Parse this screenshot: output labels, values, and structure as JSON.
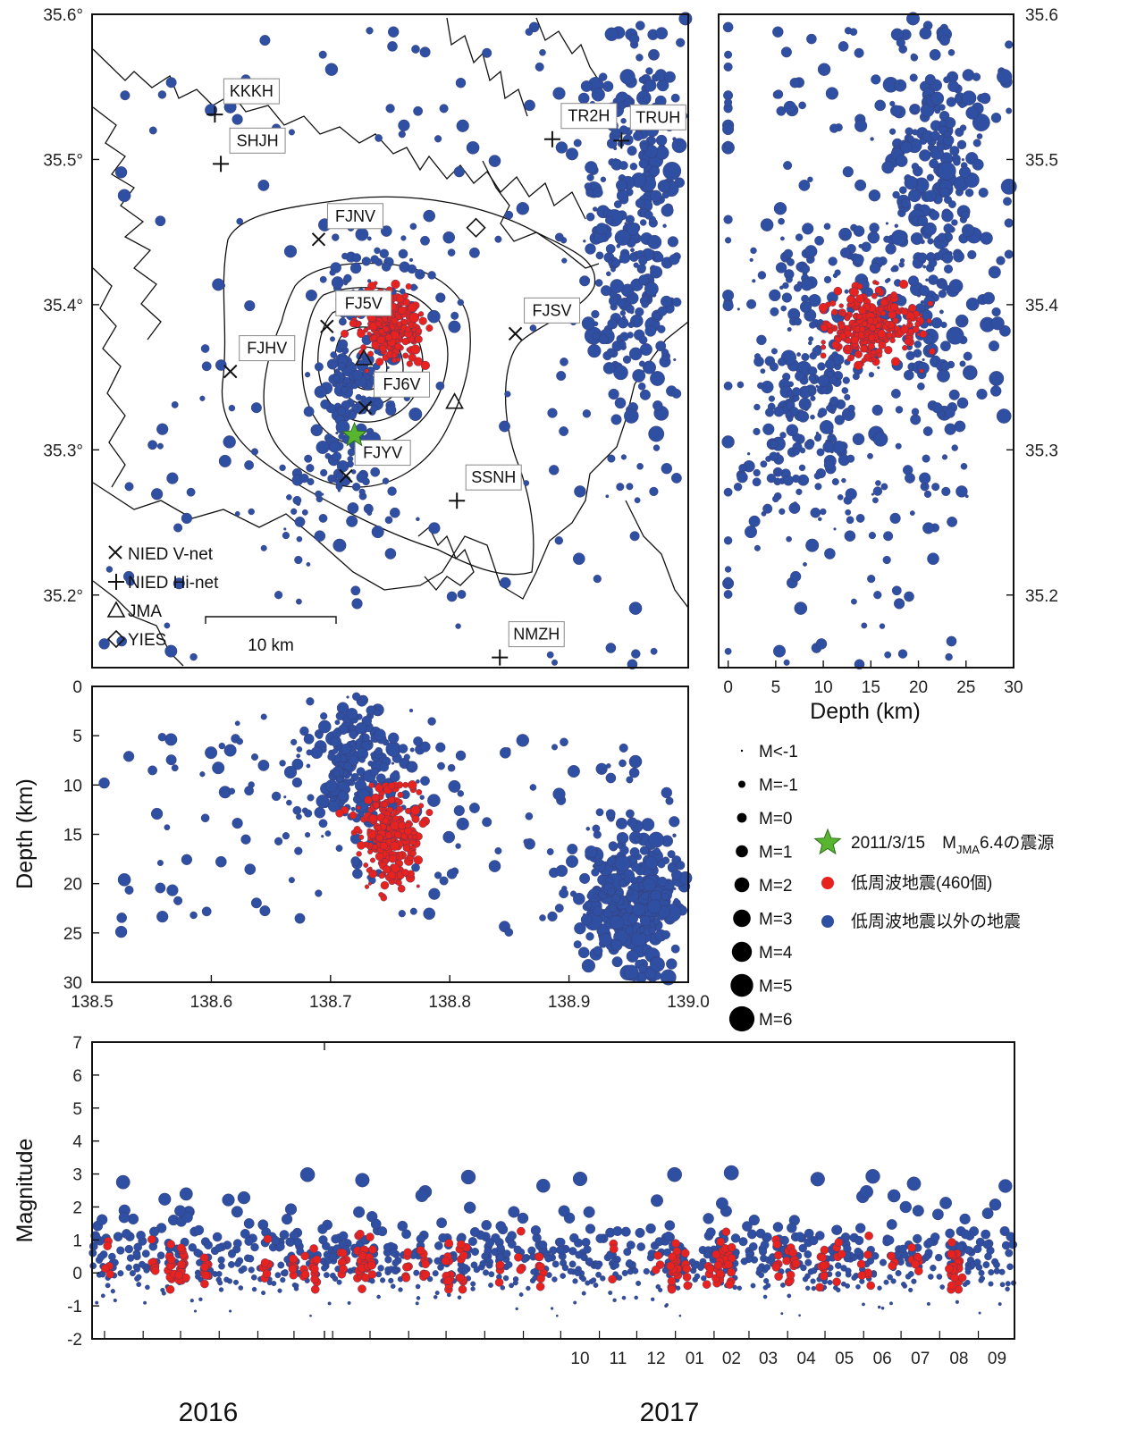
{
  "chart_data": [
    {
      "type": "scatter",
      "panel": "map",
      "xlim": [
        138.5,
        139.0
      ],
      "ylim": [
        35.15,
        35.6
      ],
      "y_ticks": [
        "35.2°",
        "35.3°",
        "35.4°",
        "35.5°",
        "35.6°"
      ],
      "scale_bar": "10 km",
      "stations": [
        {
          "name": "KKKH",
          "type": "Hi-net",
          "lon": 138.603,
          "lat": 35.531
        },
        {
          "name": "SHJH",
          "type": "Hi-net",
          "lon": 138.608,
          "lat": 35.497
        },
        {
          "name": "TR2H",
          "type": "Hi-net",
          "lon": 138.886,
          "lat": 35.514
        },
        {
          "name": "TRUH",
          "type": "Hi-net",
          "lon": 138.944,
          "lat": 35.513
        },
        {
          "name": "FJNV",
          "type": "V-net",
          "lon": 138.69,
          "lat": 35.445
        },
        {
          "name": "FJ5V",
          "type": "V-net",
          "lon": 138.697,
          "lat": 35.385
        },
        {
          "name": "FJSV",
          "type": "V-net",
          "lon": 138.855,
          "lat": 35.38
        },
        {
          "name": "FJHV",
          "type": "V-net",
          "lon": 138.616,
          "lat": 35.354
        },
        {
          "name": "FJ6V",
          "type": "V-net",
          "lon": 138.729,
          "lat": 35.329
        },
        {
          "name": "FJYV",
          "type": "V-net",
          "lon": 138.713,
          "lat": 35.282
        },
        {
          "name": "SSNH",
          "type": "Hi-net",
          "lon": 138.806,
          "lat": 35.265
        },
        {
          "name": "NMZH",
          "type": "Hi-net",
          "lon": 138.842,
          "lat": 35.157
        },
        {
          "name": "",
          "type": "JMA",
          "lon": 138.728,
          "lat": 35.363
        },
        {
          "name": "",
          "type": "JMA",
          "lon": 138.804,
          "lat": 35.333
        },
        {
          "name": "",
          "type": "YIES",
          "lon": 138.822,
          "lat": 35.453
        }
      ],
      "mainshock": {
        "lon": 138.72,
        "lat": 35.31
      },
      "legend": [
        "NIED V-net",
        "NIED Hi-net",
        "JMA",
        "YIES"
      ]
    },
    {
      "type": "scatter",
      "panel": "depth-latitude section",
      "xlabel": "Depth (km)",
      "xlim": [
        -1,
        30
      ],
      "x_ticks": [
        "0",
        "5",
        "10",
        "15",
        "20",
        "25",
        "30"
      ],
      "ylim": [
        35.15,
        35.6
      ],
      "y_ticks": [
        "35.2",
        "35.3",
        "35.4",
        "35.5",
        "35.6"
      ]
    },
    {
      "type": "scatter",
      "panel": "longitude-depth section",
      "ylabel": "Depth (km)",
      "xlim": [
        138.5,
        139.0
      ],
      "x_ticks": [
        "138.5",
        "138.6",
        "138.7",
        "138.8",
        "138.9",
        "139.0"
      ],
      "ylim": [
        30,
        0
      ],
      "y_ticks": [
        "0",
        "5",
        "10",
        "15",
        "20",
        "25",
        "30"
      ]
    },
    {
      "type": "scatter",
      "panel": "magnitude-time",
      "ylabel": "Magnitude",
      "ylim": [
        -2,
        7
      ],
      "y_ticks": [
        "-2",
        "-1",
        "0",
        "1",
        "2",
        "3",
        "4",
        "5",
        "6",
        "7"
      ],
      "months": [
        "10",
        "11",
        "12",
        "01",
        "02",
        "03",
        "04",
        "05",
        "06",
        "07",
        "08",
        "09"
      ],
      "years": [
        "2016",
        "2017"
      ],
      "xlim": [
        "2015-09-21",
        "2017-09-30"
      ]
    }
  ],
  "legend": {
    "magnitude_scale": [
      "M<-1",
      "M=-1",
      "M=0",
      "M=1",
      "M=2",
      "M=3",
      "M=4",
      "M=5",
      "M=6"
    ],
    "mainshock_prefix": "2011/3/15　M",
    "mainshock_sub": "JMA",
    "mainshock_suffix": "6.4の震源",
    "lfe_label": "低周波地震(460個)",
    "other_label": "低周波地震以外の地震"
  },
  "colors": {
    "lfe": "#e8231f",
    "other": "#2f4fa2",
    "mainshock": "#58b530",
    "outline": "#444444"
  }
}
